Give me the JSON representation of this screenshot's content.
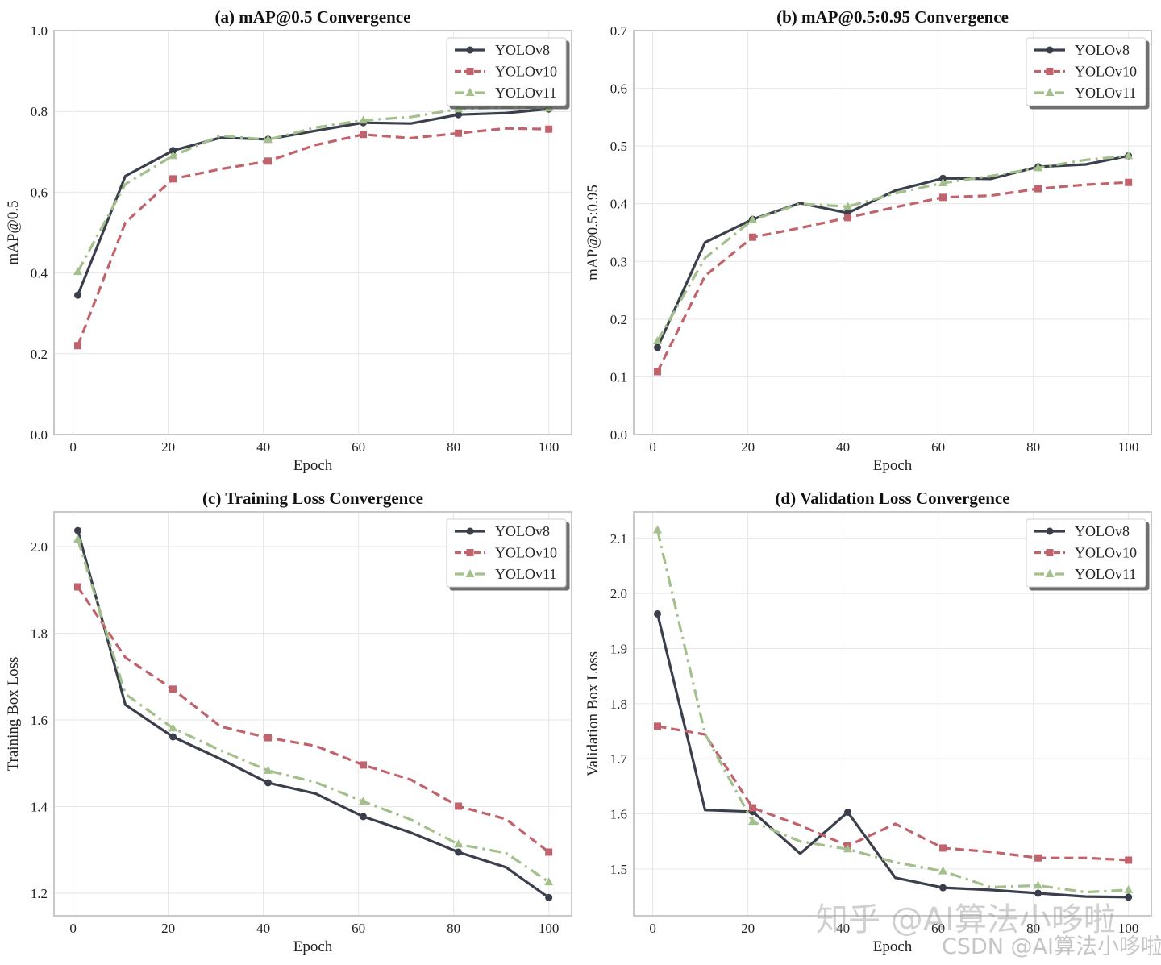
{
  "colors": {
    "YOLOv8": "#3a3f4b",
    "YOLOv10": "#c0636d",
    "YOLOv11": "#a3bf8c"
  },
  "watermarks": {
    "zhihu": "知乎 @AI算法小哆啦",
    "csdn": "CSDN @AI算法小哆啦"
  },
  "chart_data": [
    {
      "id": "a",
      "type": "line",
      "title": "(a) mAP@0.5 Convergence",
      "xlabel": "Epoch",
      "ylabel": "mAP@0.5",
      "xlim": [
        -4,
        104.8
      ],
      "ylim": [
        0.0,
        1.0
      ],
      "xticks": [
        0,
        20,
        40,
        60,
        80,
        100
      ],
      "yticks": [
        0.0,
        0.2,
        0.4,
        0.6,
        0.8,
        1.0
      ],
      "ytick_labels": [
        "0.0",
        "0.2",
        "0.4",
        "0.6",
        "0.8",
        "1.0"
      ],
      "grid": true,
      "legend": "top-right",
      "x": [
        1,
        11,
        21,
        31,
        41,
        51,
        61,
        71,
        81,
        91,
        100
      ],
      "marker_x": [
        1,
        21,
        41,
        61,
        81,
        100
      ],
      "series": [
        {
          "name": "YOLOv8",
          "style": "solid",
          "marker": "circle",
          "values": [
            0.345,
            0.64,
            0.703,
            0.735,
            0.731,
            0.752,
            0.772,
            0.77,
            0.792,
            0.796,
            0.806
          ]
        },
        {
          "name": "YOLOv10",
          "style": "dashed",
          "marker": "square",
          "values": [
            0.22,
            0.525,
            0.633,
            0.657,
            0.677,
            0.717,
            0.743,
            0.734,
            0.746,
            0.758,
            0.756
          ]
        },
        {
          "name": "YOLOv11",
          "style": "dashdot",
          "marker": "triangle",
          "values": [
            0.403,
            0.62,
            0.69,
            0.74,
            0.73,
            0.76,
            0.778,
            0.786,
            0.806,
            0.81,
            0.808
          ]
        }
      ]
    },
    {
      "id": "b",
      "type": "line",
      "title": "(b) mAP@0.5:0.95 Convergence",
      "xlabel": "Epoch",
      "ylabel": "mAP@0.5:0.95",
      "xlim": [
        -4,
        104.8
      ],
      "ylim": [
        0.0,
        0.7
      ],
      "xticks": [
        0,
        20,
        40,
        60,
        80,
        100
      ],
      "yticks": [
        0.0,
        0.1,
        0.2,
        0.3,
        0.4,
        0.5,
        0.6,
        0.7
      ],
      "ytick_labels": [
        "0.0",
        "0.1",
        "0.2",
        "0.3",
        "0.4",
        "0.5",
        "0.6",
        "0.7"
      ],
      "grid": true,
      "legend": "top-right",
      "x": [
        1,
        11,
        21,
        31,
        41,
        51,
        61,
        71,
        81,
        91,
        100
      ],
      "marker_x": [
        1,
        21,
        41,
        61,
        81,
        100
      ],
      "series": [
        {
          "name": "YOLOv8",
          "style": "solid",
          "marker": "circle",
          "values": [
            0.151,
            0.333,
            0.373,
            0.401,
            0.384,
            0.423,
            0.444,
            0.443,
            0.464,
            0.468,
            0.483
          ]
        },
        {
          "name": "YOLOv10",
          "style": "dashed",
          "marker": "square",
          "values": [
            0.109,
            0.275,
            0.342,
            0.358,
            0.376,
            0.394,
            0.411,
            0.414,
            0.426,
            0.433,
            0.437
          ]
        },
        {
          "name": "YOLOv11",
          "style": "dashdot",
          "marker": "triangle",
          "values": [
            0.162,
            0.306,
            0.372,
            0.4,
            0.395,
            0.418,
            0.436,
            0.448,
            0.462,
            0.476,
            0.483
          ]
        }
      ]
    },
    {
      "id": "c",
      "type": "line",
      "title": "(c) Training Loss Convergence",
      "xlabel": "Epoch",
      "ylabel": "Training Box Loss",
      "xlim": [
        -4,
        104.8
      ],
      "ylim": [
        1.148,
        2.08
      ],
      "xticks": [
        0,
        20,
        40,
        60,
        80,
        100
      ],
      "yticks": [
        1.2,
        1.4,
        1.6,
        1.8,
        2.0
      ],
      "ytick_labels": [
        "1.2",
        "1.4",
        "1.6",
        "1.8",
        "2.0"
      ],
      "grid": true,
      "legend": "top-right",
      "x": [
        1,
        11,
        21,
        31,
        41,
        51,
        61,
        71,
        81,
        91,
        100
      ],
      "marker_x": [
        1,
        21,
        41,
        61,
        81,
        100
      ],
      "series": [
        {
          "name": "YOLOv8",
          "style": "solid",
          "marker": "circle",
          "values": [
            2.037,
            1.635,
            1.561,
            1.51,
            1.455,
            1.43,
            1.377,
            1.34,
            1.295,
            1.26,
            1.19
          ]
        },
        {
          "name": "YOLOv10",
          "style": "dashed",
          "marker": "square",
          "values": [
            1.907,
            1.744,
            1.671,
            1.585,
            1.559,
            1.54,
            1.496,
            1.462,
            1.401,
            1.371,
            1.295
          ]
        },
        {
          "name": "YOLOv11",
          "style": "dashdot",
          "marker": "triangle",
          "values": [
            2.017,
            1.66,
            1.581,
            1.53,
            1.483,
            1.456,
            1.412,
            1.37,
            1.313,
            1.293,
            1.226
          ]
        }
      ]
    },
    {
      "id": "d",
      "type": "line",
      "title": "(d) Validation Loss Convergence",
      "xlabel": "Epoch",
      "ylabel": "Validation Box Loss",
      "xlim": [
        -4,
        104.8
      ],
      "ylim": [
        1.415,
        2.148
      ],
      "xticks": [
        0,
        20,
        40,
        60,
        80,
        100
      ],
      "yticks": [
        1.5,
        1.6,
        1.7,
        1.8,
        1.9,
        2.0,
        2.1
      ],
      "ytick_labels": [
        "1.5",
        "1.6",
        "1.7",
        "1.8",
        "1.9",
        "2.0",
        "2.1"
      ],
      "grid": true,
      "legend": "top-right",
      "x": [
        1,
        11,
        21,
        31,
        41,
        51,
        61,
        71,
        81,
        91,
        100
      ],
      "marker_x": [
        1,
        21,
        41,
        61,
        81,
        100
      ],
      "series": [
        {
          "name": "YOLOv8",
          "style": "solid",
          "marker": "circle",
          "values": [
            1.963,
            1.607,
            1.604,
            1.528,
            1.603,
            1.484,
            1.466,
            1.462,
            1.456,
            1.45,
            1.449
          ]
        },
        {
          "name": "YOLOv10",
          "style": "dashed",
          "marker": "square",
          "values": [
            1.759,
            1.744,
            1.611,
            1.579,
            1.542,
            1.582,
            1.538,
            1.531,
            1.52,
            1.52,
            1.516
          ]
        },
        {
          "name": "YOLOv11",
          "style": "dashdot",
          "marker": "triangle",
          "values": [
            2.115,
            1.745,
            1.586,
            1.55,
            1.536,
            1.512,
            1.496,
            1.467,
            1.47,
            1.458,
            1.462
          ]
        }
      ]
    }
  ]
}
